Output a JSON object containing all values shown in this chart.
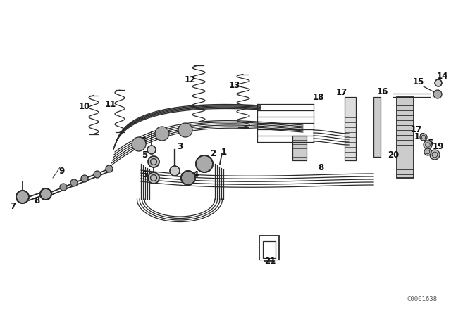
{
  "background_color": "#ffffff",
  "diagram_color": "#2a2a2a",
  "fig_width": 6.4,
  "fig_height": 4.48,
  "watermark": "C0001638"
}
